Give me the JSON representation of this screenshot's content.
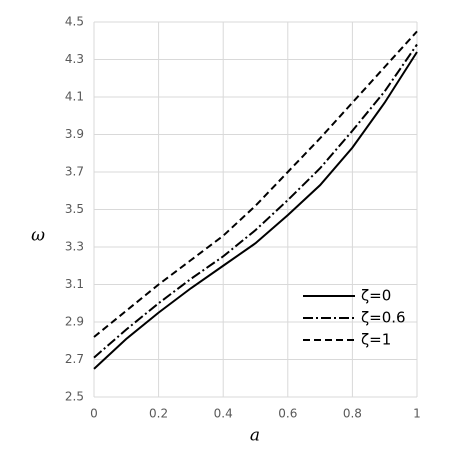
{
  "chart_data": {
    "type": "line",
    "x_label": "a",
    "y_label": "ω",
    "x": [
      0,
      0.1,
      0.2,
      0.3,
      0.4,
      0.5,
      0.6,
      0.7,
      0.8,
      0.9,
      1
    ],
    "series": [
      {
        "name": "ζ=0",
        "color": "#000000",
        "dash": "solid",
        "values": [
          2.65,
          2.81,
          2.95,
          3.08,
          3.2,
          3.32,
          3.47,
          3.63,
          3.83,
          4.07,
          4.34
        ]
      },
      {
        "name": "ζ=0.6",
        "color": "#000000",
        "dash": "dashdot",
        "values": [
          2.71,
          2.86,
          3.0,
          3.13,
          3.25,
          3.39,
          3.55,
          3.72,
          3.92,
          4.13,
          4.38
        ]
      },
      {
        "name": "ζ=1",
        "color": "#000000",
        "dash": "dashed",
        "values": [
          2.82,
          2.96,
          3.1,
          3.23,
          3.36,
          3.52,
          3.7,
          3.88,
          4.07,
          4.26,
          4.45
        ]
      }
    ],
    "xlim": [
      0,
      1
    ],
    "xticks": [
      0,
      0.2,
      0.4,
      0.6,
      0.8,
      1
    ],
    "ylim": [
      2.5,
      4.5
    ],
    "yticks": [
      2.5,
      2.7,
      2.9,
      3.1,
      3.3,
      3.5,
      3.7,
      3.9,
      4.1,
      4.3,
      4.5
    ],
    "grid": true,
    "legend": "lower-right"
  }
}
